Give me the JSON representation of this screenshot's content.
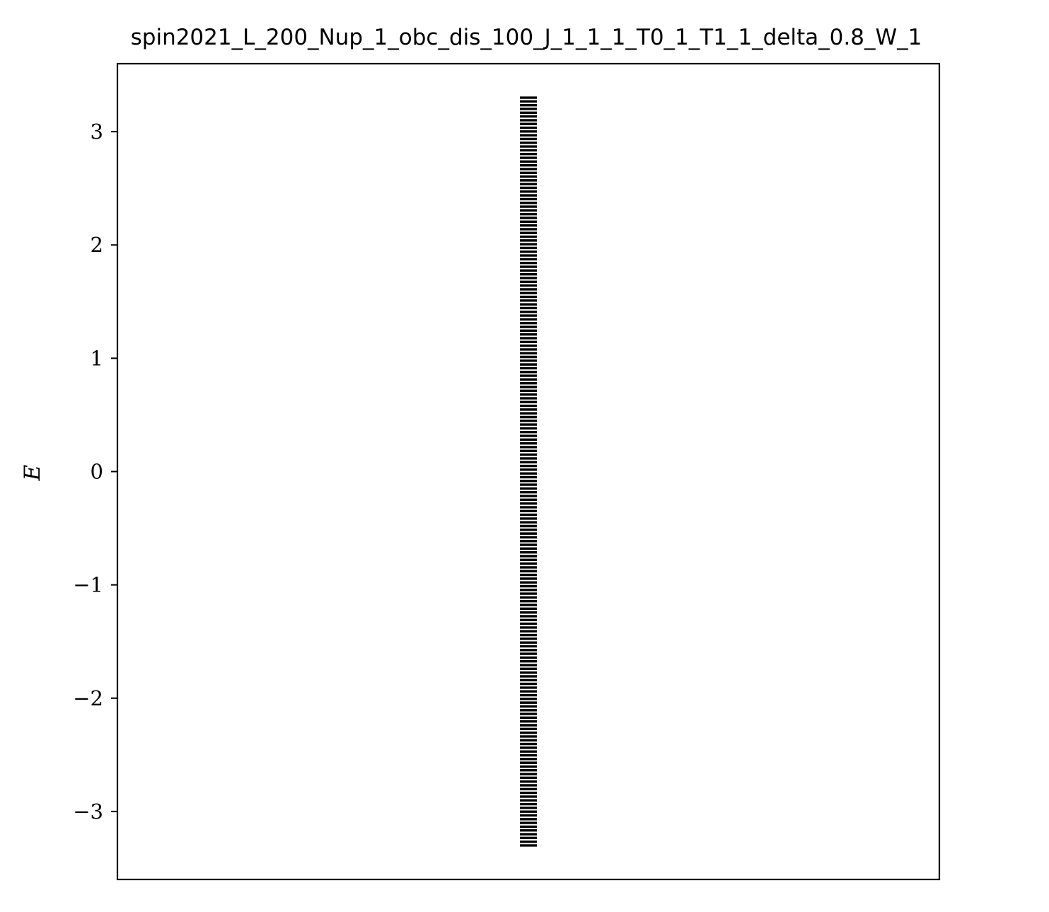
{
  "chart_data": {
    "type": "line",
    "title": "spin2021_L_200_Nup_1_obc_dis_100_J_1_1_1_T0_1_T1_1_delta_0.8_W_1",
    "xlabel": "",
    "ylabel": "E",
    "ylim": [
      -3.6,
      3.6
    ],
    "yticks": [
      {
        "value": 3,
        "label": "3"
      },
      {
        "value": 2,
        "label": "2"
      },
      {
        "value": 1,
        "label": "1"
      },
      {
        "value": 0,
        "label": "0"
      },
      {
        "value": -1,
        "label": "−1"
      },
      {
        "value": -2,
        "label": "−2"
      },
      {
        "value": -3,
        "label": "−3"
      }
    ],
    "xticks": [],
    "grid": false,
    "legend": "none",
    "marker": "horizontal line",
    "color": "#000000",
    "series": [
      {
        "levels": {
          "count": 200,
          "min": -3.3,
          "max": 3.3,
          "gap_around": 0.0
        }
      }
    ]
  }
}
